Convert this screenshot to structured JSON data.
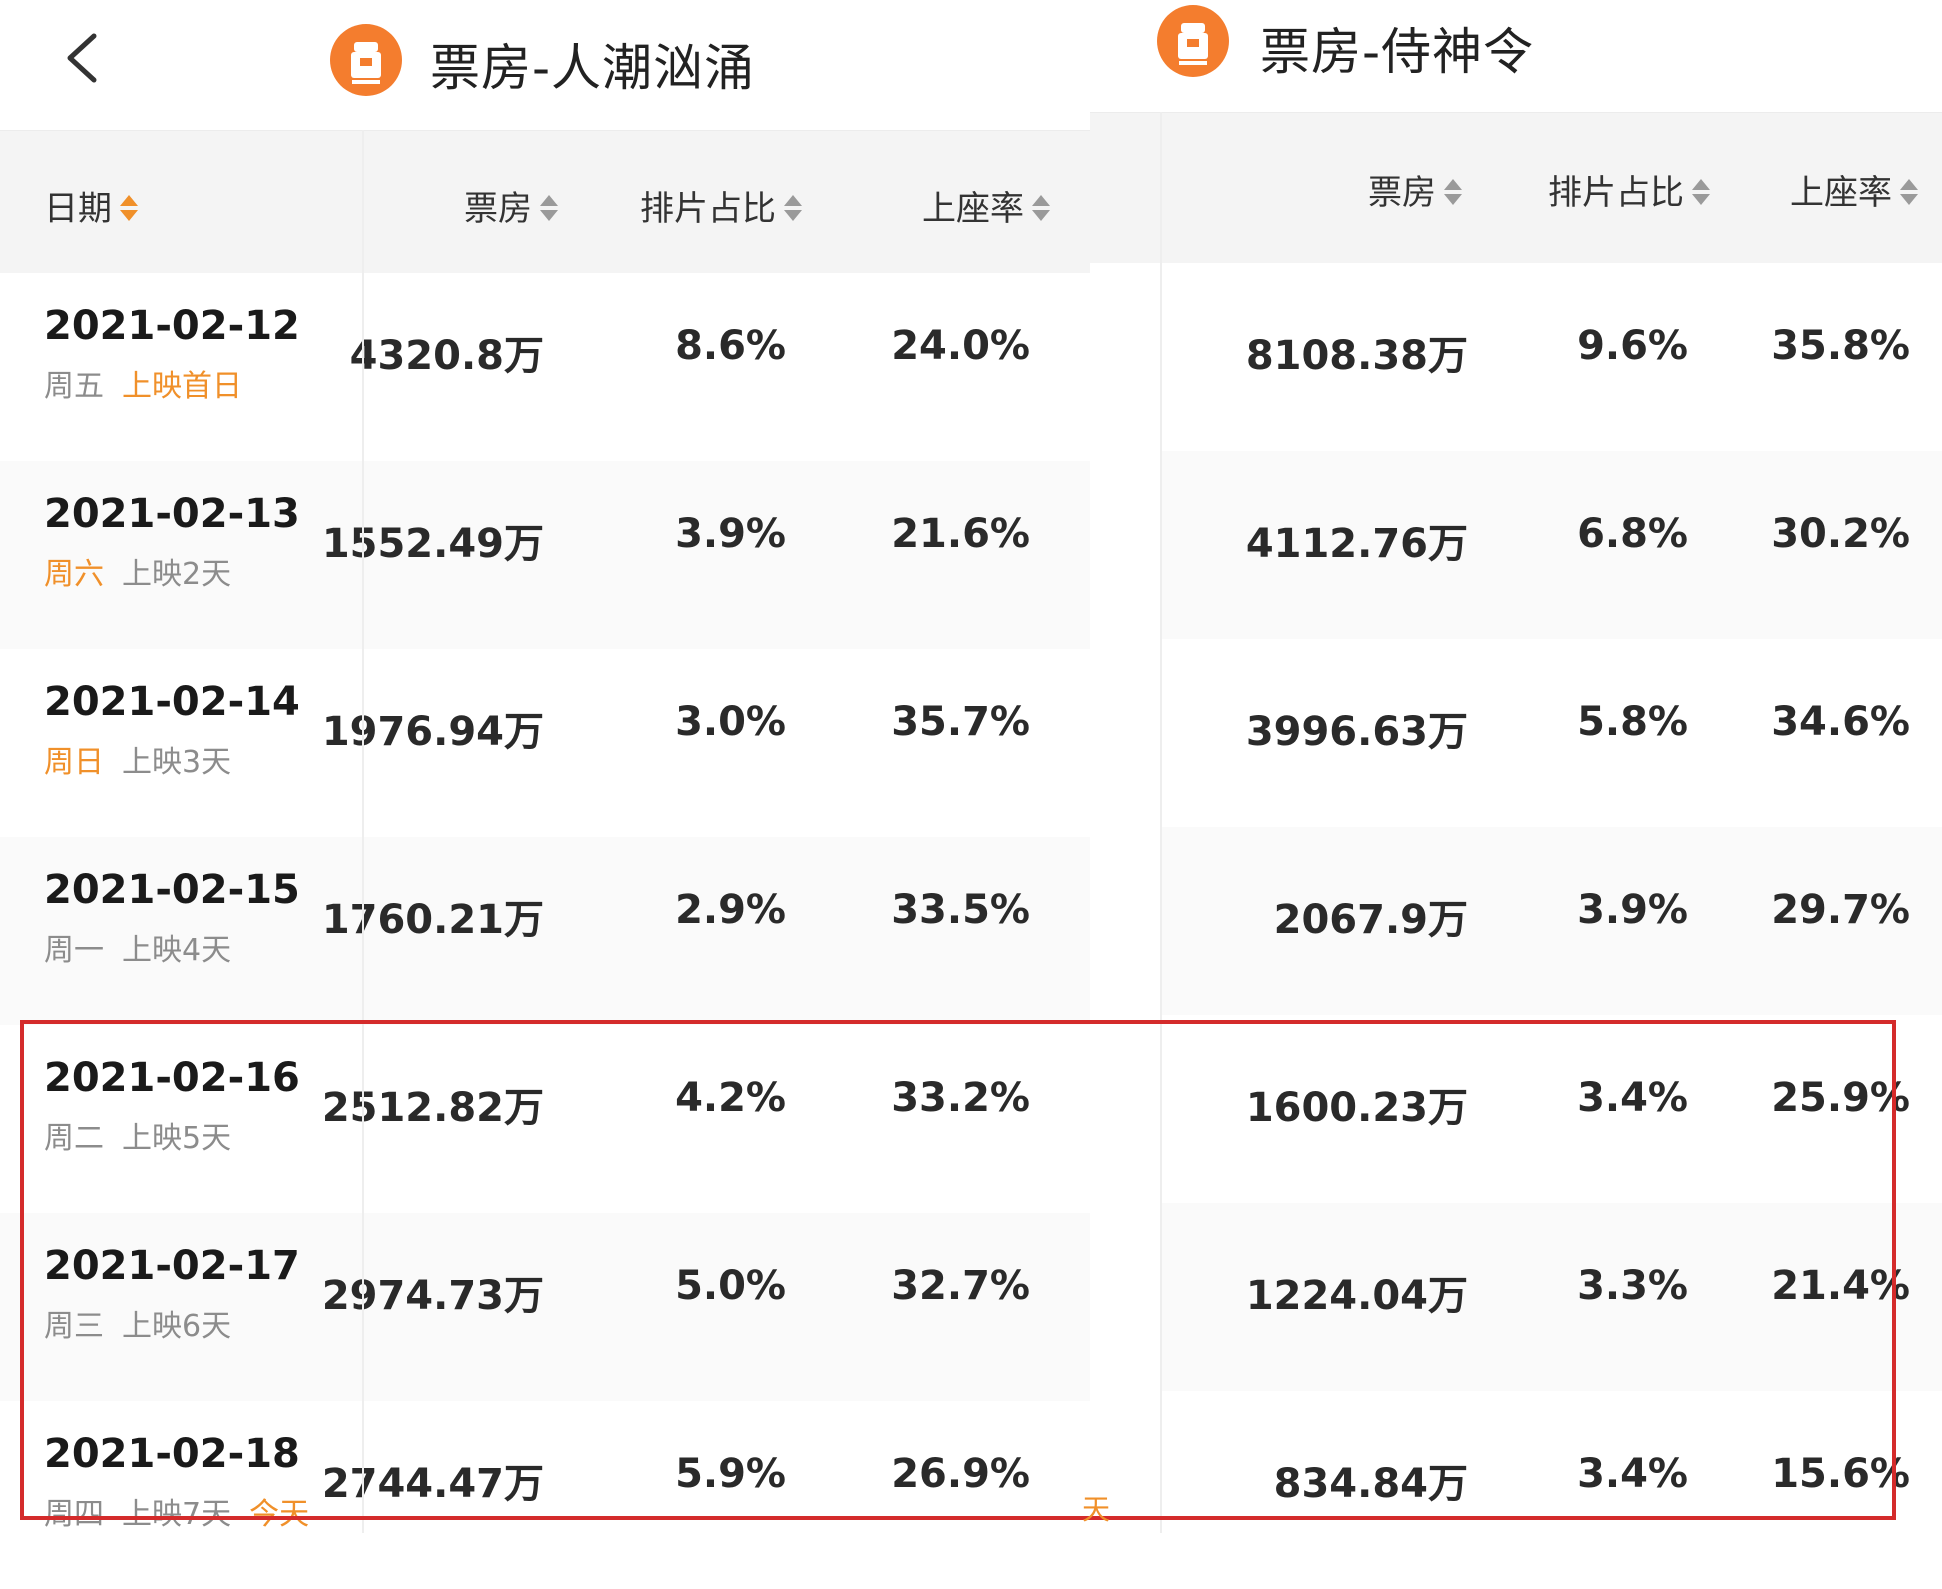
{
  "left": {
    "title": "票房-人潮汹涌",
    "headers": {
      "date": "日期",
      "box_office": "票房",
      "screening_share": "排片占比",
      "occupancy": "上座率"
    },
    "rows": [
      {
        "date": "2021-02-12",
        "weekday": "周五",
        "day_label": "上映首日",
        "highlight": "day_label",
        "box_office": "4320.8万",
        "screening_share": "8.6%",
        "occupancy": "24.0%"
      },
      {
        "date": "2021-02-13",
        "weekday": "周六",
        "day_label": "上映2天",
        "highlight": "weekday",
        "box_office": "1552.49万",
        "screening_share": "3.9%",
        "occupancy": "21.6%"
      },
      {
        "date": "2021-02-14",
        "weekday": "周日",
        "day_label": "上映3天",
        "highlight": "weekday",
        "box_office": "1976.94万",
        "screening_share": "3.0%",
        "occupancy": "35.7%"
      },
      {
        "date": "2021-02-15",
        "weekday": "周一",
        "day_label": "上映4天",
        "highlight": "",
        "box_office": "1760.21万",
        "screening_share": "2.9%",
        "occupancy": "33.5%"
      },
      {
        "date": "2021-02-16",
        "weekday": "周二",
        "day_label": "上映5天",
        "highlight": "",
        "box_office": "2512.82万",
        "screening_share": "4.2%",
        "occupancy": "33.2%"
      },
      {
        "date": "2021-02-17",
        "weekday": "周三",
        "day_label": "上映6天",
        "highlight": "",
        "box_office": "2974.73万",
        "screening_share": "5.0%",
        "occupancy": "32.7%"
      },
      {
        "date": "2021-02-18",
        "weekday": "周四",
        "day_label": "上映7天",
        "today": "今天",
        "highlight": "today",
        "box_office": "2744.47万",
        "screening_share": "5.9%",
        "occupancy": "26.9%"
      }
    ]
  },
  "right": {
    "title": "票房-侍神令",
    "headers": {
      "box_office": "票房",
      "screening_share": "排片占比",
      "occupancy": "上座率"
    },
    "rows": [
      {
        "box_office": "8108.38万",
        "screening_share": "9.6%",
        "occupancy": "35.8%"
      },
      {
        "box_office": "4112.76万",
        "screening_share": "6.8%",
        "occupancy": "30.2%"
      },
      {
        "box_office": "3996.63万",
        "screening_share": "5.8%",
        "occupancy": "34.6%"
      },
      {
        "box_office": "2067.9万",
        "screening_share": "3.9%",
        "occupancy": "29.7%"
      },
      {
        "box_office": "1600.23万",
        "screening_share": "3.4%",
        "occupancy": "25.9%"
      },
      {
        "box_office": "1224.04万",
        "screening_share": "3.3%",
        "occupancy": "21.4%"
      },
      {
        "box_office": "834.84万",
        "screening_share": "3.4%",
        "occupancy": "15.6%"
      }
    ]
  },
  "stray_text": "天",
  "colors": {
    "accent": "#f47d2e",
    "highlight_text": "#f0902a",
    "annotation_box": "#d42b2b"
  }
}
